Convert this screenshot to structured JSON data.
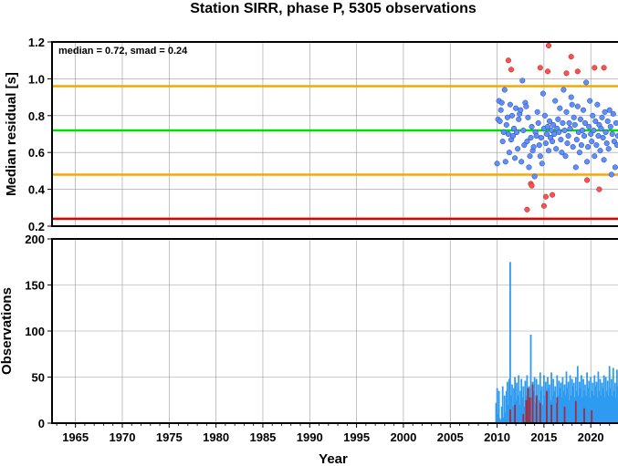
{
  "chart_data": [
    {
      "type": "scatter",
      "title": "Station SIRR, phase P, 5305 observations",
      "ylabel": "Median residual [s]",
      "annotation": "median = 0.72, smad = 0.24",
      "xlim": [
        1962.5,
        2023.0
      ],
      "ylim": [
        0.2,
        1.2
      ],
      "yticks": [
        "0.2",
        "0.4",
        "0.6",
        "0.8",
        "1.0",
        "1.2"
      ],
      "grid": true,
      "reference_lines": [
        {
          "y": 0.96,
          "color": "#f5a800"
        },
        {
          "y": 0.72,
          "color": "#00e000"
        },
        {
          "y": 0.48,
          "color": "#f5a800"
        },
        {
          "y": 0.24,
          "color": "#e00000"
        }
      ],
      "series": [
        {
          "color": "#5f8fff",
          "points": [
            [
              2010.0,
              0.54
            ],
            [
              2010.1,
              0.78
            ],
            [
              2010.2,
              0.88
            ],
            [
              2010.3,
              0.77
            ],
            [
              2010.4,
              0.83
            ],
            [
              2010.5,
              0.87
            ],
            [
              2010.6,
              0.66
            ],
            [
              2010.7,
              0.71
            ],
            [
              2010.8,
              0.94
            ],
            [
              2010.9,
              0.55
            ],
            [
              2011.0,
              0.75
            ],
            [
              2011.1,
              0.79
            ],
            [
              2011.2,
              0.7
            ],
            [
              2011.3,
              0.6
            ],
            [
              2011.4,
              0.86
            ],
            [
              2011.5,
              0.67
            ],
            [
              2011.6,
              0.8
            ],
            [
              2011.7,
              0.69
            ],
            [
              2011.8,
              0.73
            ],
            [
              2011.9,
              0.57
            ],
            [
              2012.0,
              0.84
            ],
            [
              2012.1,
              0.71
            ],
            [
              2012.2,
              0.62
            ],
            [
              2012.3,
              0.78
            ],
            [
              2012.4,
              0.81
            ],
            [
              2012.5,
              0.83
            ],
            [
              2012.6,
              0.55
            ],
            [
              2012.7,
              0.99
            ],
            [
              2012.8,
              0.72
            ],
            [
              2012.9,
              0.64
            ],
            [
              2013.0,
              0.87
            ],
            [
              2013.1,
              0.85
            ],
            [
              2013.2,
              0.66
            ],
            [
              2013.3,
              0.79
            ],
            [
              2013.4,
              0.52
            ],
            [
              2013.5,
              0.58
            ],
            [
              2013.6,
              0.68
            ],
            [
              2013.7,
              0.74
            ],
            [
              2013.8,
              0.61
            ],
            [
              2013.9,
              0.63
            ],
            [
              2014.0,
              0.47
            ],
            [
              2014.1,
              0.71
            ],
            [
              2014.2,
              0.69
            ],
            [
              2014.3,
              0.82
            ],
            [
              2014.4,
              0.76
            ],
            [
              2014.5,
              0.64
            ],
            [
              2014.6,
              0.58
            ],
            [
              2014.7,
              0.68
            ],
            [
              2014.8,
              0.54
            ],
            [
              2014.9,
              0.92
            ],
            [
              2015.0,
              0.73
            ],
            [
              2015.1,
              0.8
            ],
            [
              2015.2,
              0.65
            ],
            [
              2015.3,
              0.7
            ],
            [
              2015.4,
              0.74
            ],
            [
              2015.5,
              0.61
            ],
            [
              2015.6,
              0.77
            ],
            [
              2015.7,
              0.68
            ],
            [
              2015.8,
              0.72
            ],
            [
              2015.9,
              0.66
            ],
            [
              2016.0,
              0.75
            ],
            [
              2016.1,
              0.7
            ],
            [
              2016.2,
              0.88
            ],
            [
              2016.3,
              0.62
            ],
            [
              2016.4,
              0.73
            ],
            [
              2016.5,
              0.78
            ],
            [
              2016.6,
              0.71
            ],
            [
              2016.7,
              0.84
            ],
            [
              2016.8,
              0.67
            ],
            [
              2016.9,
              0.6
            ],
            [
              2017.0,
              0.76
            ],
            [
              2017.1,
              0.94
            ],
            [
              2017.2,
              0.72
            ],
            [
              2017.3,
              0.58
            ],
            [
              2017.4,
              0.82
            ],
            [
              2017.5,
              0.65
            ],
            [
              2017.6,
              0.69
            ],
            [
              2017.7,
              0.76
            ],
            [
              2017.8,
              0.73
            ],
            [
              2017.9,
              0.9
            ],
            [
              2018.0,
              0.86
            ],
            [
              2018.1,
              0.63
            ],
            [
              2018.2,
              0.79
            ],
            [
              2018.3,
              0.75
            ],
            [
              2018.4,
              0.52
            ],
            [
              2018.5,
              0.67
            ],
            [
              2018.6,
              0.85
            ],
            [
              2018.7,
              0.71
            ],
            [
              2018.8,
              0.6
            ],
            [
              2018.9,
              0.78
            ],
            [
              2019.0,
              0.64
            ],
            [
              2019.1,
              0.72
            ],
            [
              2019.2,
              0.83
            ],
            [
              2019.3,
              0.69
            ],
            [
              2019.4,
              0.76
            ],
            [
              2019.5,
              0.98
            ],
            [
              2019.6,
              0.55
            ],
            [
              2019.7,
              0.63
            ],
            [
              2019.8,
              0.74
            ],
            [
              2019.9,
              0.88
            ],
            [
              2020.0,
              0.7
            ],
            [
              2020.1,
              0.66
            ],
            [
              2020.2,
              0.8
            ],
            [
              2020.3,
              0.72
            ],
            [
              2020.4,
              0.58
            ],
            [
              2020.5,
              0.77
            ],
            [
              2020.6,
              0.64
            ],
            [
              2020.7,
              0.86
            ],
            [
              2020.8,
              0.69
            ],
            [
              2020.9,
              0.75
            ],
            [
              2021.0,
              0.61
            ],
            [
              2021.1,
              0.73
            ],
            [
              2021.2,
              0.79
            ],
            [
              2021.3,
              0.68
            ],
            [
              2021.4,
              0.56
            ],
            [
              2021.5,
              0.82
            ],
            [
              2021.6,
              0.71
            ],
            [
              2021.7,
              0.65
            ],
            [
              2021.8,
              0.77
            ],
            [
              2021.9,
              0.62
            ],
            [
              2022.0,
              0.83
            ],
            [
              2022.1,
              0.74
            ],
            [
              2022.2,
              0.48
            ],
            [
              2022.3,
              0.7
            ],
            [
              2022.4,
              0.81
            ],
            [
              2022.5,
              0.66
            ],
            [
              2022.6,
              0.52
            ],
            [
              2022.7,
              0.76
            ],
            [
              2022.8,
              0.64
            ],
            [
              2022.9,
              0.69
            ]
          ]
        },
        {
          "color": "#ff5050",
          "points": [
            [
              2011.2,
              1.1
            ],
            [
              2011.5,
              1.05
            ],
            [
              2013.2,
              0.29
            ],
            [
              2013.6,
              0.43
            ],
            [
              2013.7,
              0.42
            ],
            [
              2014.6,
              1.06
            ],
            [
              2015.0,
              0.31
            ],
            [
              2015.2,
              0.36
            ],
            [
              2015.4,
              1.04
            ],
            [
              2015.5,
              1.18
            ],
            [
              2015.9,
              0.37
            ],
            [
              2017.4,
              1.03
            ],
            [
              2017.9,
              1.12
            ],
            [
              2018.6,
              1.04
            ],
            [
              2019.6,
              0.45
            ],
            [
              2020.4,
              1.06
            ],
            [
              2020.9,
              0.4
            ],
            [
              2021.4,
              1.06
            ]
          ]
        }
      ]
    },
    {
      "type": "bar",
      "ylabel": "Observations",
      "xlabel": "Year",
      "xlim": [
        1962.5,
        2023.0
      ],
      "ylim": [
        0,
        200
      ],
      "yticks": [
        "0",
        "50",
        "100",
        "150",
        "200"
      ],
      "xticks": [
        "1965",
        "1970",
        "1975",
        "1980",
        "1985",
        "1990",
        "1995",
        "2000",
        "2005",
        "2010",
        "2015",
        "2020"
      ],
      "grid": true,
      "series": [
        {
          "color": "#2e9bf0",
          "x": [
            2009.9,
            2010.0,
            2010.1,
            2010.2,
            2010.3,
            2010.4,
            2010.5,
            2010.6,
            2010.7,
            2010.8,
            2010.9,
            2011.0,
            2011.1,
            2011.2,
            2011.3,
            2011.4,
            2011.5,
            2011.6,
            2011.7,
            2011.8,
            2011.9,
            2012.0,
            2012.1,
            2012.2,
            2012.3,
            2012.4,
            2012.5,
            2012.6,
            2012.7,
            2012.8,
            2012.9,
            2013.0,
            2013.1,
            2013.2,
            2013.3,
            2013.4,
            2013.5,
            2013.6,
            2013.7,
            2013.8,
            2013.9,
            2014.0,
            2014.1,
            2014.2,
            2014.3,
            2014.4,
            2014.5,
            2014.6,
            2014.7,
            2014.8,
            2014.9,
            2015.0,
            2015.1,
            2015.2,
            2015.3,
            2015.4,
            2015.5,
            2015.6,
            2015.7,
            2015.8,
            2015.9,
            2016.0,
            2016.1,
            2016.2,
            2016.3,
            2016.4,
            2016.5,
            2016.6,
            2016.7,
            2016.8,
            2016.9,
            2017.0,
            2017.1,
            2017.2,
            2017.3,
            2017.4,
            2017.5,
            2017.6,
            2017.7,
            2017.8,
            2017.9,
            2018.0,
            2018.1,
            2018.2,
            2018.3,
            2018.4,
            2018.5,
            2018.6,
            2018.7,
            2018.8,
            2018.9,
            2019.0,
            2019.1,
            2019.2,
            2019.3,
            2019.4,
            2019.5,
            2019.6,
            2019.7,
            2019.8,
            2019.9,
            2020.0,
            2020.1,
            2020.2,
            2020.3,
            2020.4,
            2020.5,
            2020.6,
            2020.7,
            2020.8,
            2020.9,
            2021.0,
            2021.1,
            2021.2,
            2021.3,
            2021.4,
            2021.5,
            2021.6,
            2021.7,
            2021.8,
            2021.9,
            2022.0,
            2022.1,
            2022.2,
            2022.3,
            2022.4,
            2022.5,
            2022.6,
            2022.7,
            2022.8,
            2022.9
          ],
          "values": [
            22,
            38,
            10,
            35,
            5,
            3,
            18,
            40,
            6,
            30,
            12,
            35,
            45,
            20,
            48,
            175,
            30,
            42,
            18,
            38,
            50,
            25,
            44,
            30,
            52,
            20,
            35,
            48,
            28,
            40,
            18,
            46,
            30,
            52,
            25,
            40,
            38,
            96,
            28,
            45,
            35,
            50,
            22,
            48,
            30,
            42,
            25,
            55,
            35,
            40,
            20,
            52,
            30,
            45,
            28,
            50,
            38,
            42,
            25,
            55,
            30,
            48,
            35,
            40,
            22,
            52,
            30,
            46,
            38,
            44,
            28,
            50,
            35,
            42,
            30,
            56,
            38,
            45,
            25,
            52,
            30,
            48,
            40,
            44,
            28,
            50,
            35,
            62,
            30,
            45,
            38,
            52,
            28,
            48,
            35,
            42,
            30,
            55,
            38,
            46,
            28,
            50,
            35,
            44,
            30,
            52,
            40,
            45,
            28,
            56,
            35,
            48,
            30,
            44,
            38,
            52,
            28,
            50,
            35,
            46,
            30,
            62,
            38,
            48,
            30,
            60,
            35,
            44,
            28,
            58,
            40
          ]
        },
        {
          "color": "#a8283c",
          "x": [
            2011.4,
            2011.9,
            2012.8,
            2013.1,
            2013.3,
            2013.5,
            2013.8,
            2014.2,
            2014.6,
            2015.3,
            2015.8,
            2016.4,
            2017.2,
            2018.4,
            2019.3,
            2020.1
          ],
          "values": [
            15,
            20,
            10,
            25,
            38,
            28,
            42,
            30,
            22,
            35,
            20,
            28,
            18,
            24,
            16,
            14
          ]
        }
      ]
    }
  ]
}
